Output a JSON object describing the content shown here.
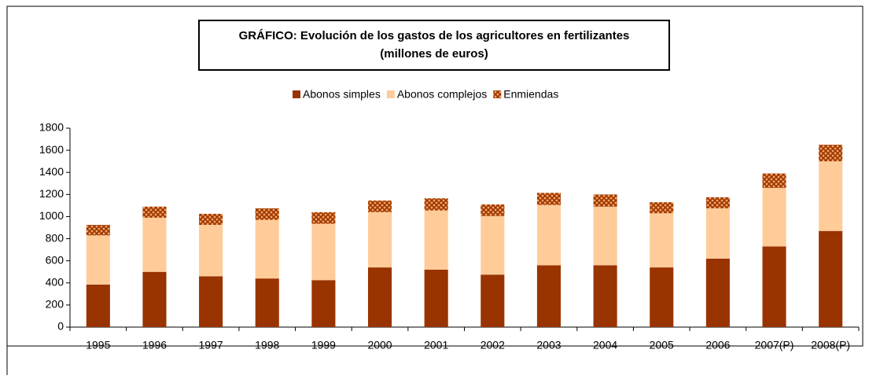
{
  "chart_data": {
    "type": "stacked_bar",
    "title": "GRÁFICO: Evolución de los gastos de los agricultores en fertilizantes",
    "subtitle": "(millones de euros)",
    "categories": [
      "1995",
      "1996",
      "1997",
      "1998",
      "1999",
      "2000",
      "2001",
      "2002",
      "2003",
      "2004",
      "2005",
      "2006",
      "2007(P)",
      "2008(P)"
    ],
    "series": [
      {
        "name": "Abonos simples",
        "color": "#993300",
        "values": [
          385,
          500,
          460,
          440,
          425,
          540,
          520,
          475,
          560,
          560,
          540,
          620,
          730,
          870
        ]
      },
      {
        "name": "Abonos complejos",
        "color": "#FFCC99",
        "values": [
          445,
          490,
          465,
          530,
          510,
          500,
          535,
          530,
          545,
          530,
          490,
          455,
          530,
          630
        ]
      },
      {
        "name": "Enmiendas",
        "color": "#993300",
        "values": [
          95,
          100,
          100,
          105,
          105,
          105,
          110,
          105,
          110,
          110,
          100,
          100,
          130,
          150
        ]
      }
    ],
    "ylim": [
      0,
      1800
    ],
    "yticks": [
      0,
      200,
      400,
      600,
      800,
      1000,
      1200,
      1400,
      1600,
      1800
    ],
    "legend": "top"
  }
}
